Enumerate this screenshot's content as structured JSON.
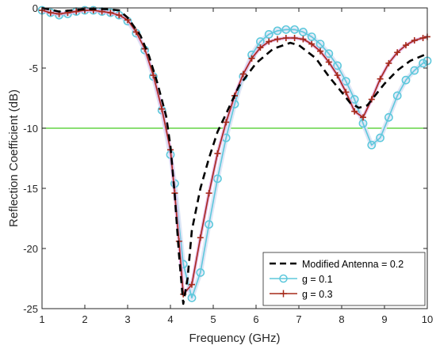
{
  "chart_data": {
    "type": "line",
    "title": "",
    "xlabel": "Frequency   (GHz)",
    "ylabel": "Reflection Coefficient   (dB)",
    "xlim": [
      1,
      10
    ],
    "ylim": [
      -25,
      0
    ],
    "xticks": [
      1,
      2,
      3,
      4,
      5,
      6,
      7,
      8,
      9,
      10
    ],
    "yticks": [
      0,
      -5,
      -10,
      -15,
      -20,
      -25
    ],
    "xtick_labels": [
      "1",
      "2",
      "3",
      "4",
      "5",
      "6",
      "7",
      "8",
      "9",
      "10"
    ],
    "ytick_labels": [
      "0",
      "-5",
      "-10",
      "-15",
      "-20",
      "-25"
    ],
    "grid": false,
    "legend_position": "bottom-right",
    "reference_line": {
      "y": -10,
      "color": "#44cc22"
    },
    "series": [
      {
        "name": "Modified Antenna = 0.2",
        "color": "#000000",
        "style": "dashed",
        "marker": "none",
        "x": [
          1.0,
          1.4,
          2.0,
          2.5,
          2.8,
          3.0,
          3.3,
          3.5,
          3.7,
          3.9,
          4.0,
          4.1,
          4.2,
          4.3,
          4.4,
          4.5,
          4.7,
          4.9,
          5.1,
          5.3,
          5.6,
          6.0,
          6.4,
          6.8,
          7.0,
          7.4,
          7.7,
          8.0,
          8.2,
          8.4,
          8.6,
          8.8,
          9.0,
          9.3,
          9.6,
          10.0
        ],
        "y": [
          0.0,
          -0.3,
          -0.1,
          -0.1,
          -0.2,
          -0.8,
          -2.3,
          -4.0,
          -6.3,
          -9.0,
          -11.5,
          -15.5,
          -20.5,
          -24.6,
          -22.5,
          -18.5,
          -15.0,
          -12.5,
          -10.3,
          -8.8,
          -6.5,
          -4.6,
          -3.4,
          -2.9,
          -3.1,
          -4.2,
          -5.7,
          -7.0,
          -7.9,
          -8.3,
          -8.1,
          -7.2,
          -6.3,
          -5.2,
          -4.4,
          -3.8
        ]
      },
      {
        "name": "g = 0.1",
        "color": "#5ec8dc",
        "style": "solid",
        "marker": "circle",
        "x": [
          1.0,
          1.2,
          1.4,
          1.6,
          1.8,
          2.0,
          2.2,
          2.4,
          2.6,
          2.8,
          3.0,
          3.2,
          3.4,
          3.6,
          3.8,
          4.0,
          4.1,
          4.3,
          4.5,
          4.7,
          4.9,
          5.1,
          5.3,
          5.5,
          5.7,
          5.9,
          6.1,
          6.3,
          6.5,
          6.7,
          6.9,
          7.1,
          7.3,
          7.5,
          7.7,
          7.9,
          8.1,
          8.3,
          8.5,
          8.7,
          8.9,
          9.1,
          9.3,
          9.5,
          9.7,
          9.9,
          10.0
        ],
        "y": [
          -0.2,
          -0.4,
          -0.6,
          -0.5,
          -0.3,
          -0.2,
          -0.2,
          -0.3,
          -0.4,
          -0.6,
          -1.1,
          -2.1,
          -3.5,
          -5.7,
          -8.5,
          -12.2,
          -14.6,
          -21.3,
          -24.1,
          -22.0,
          -18.0,
          -14.2,
          -10.8,
          -8.0,
          -5.7,
          -3.9,
          -2.8,
          -2.2,
          -1.9,
          -1.8,
          -1.8,
          -2.0,
          -2.4,
          -3.0,
          -3.8,
          -4.8,
          -6.1,
          -7.6,
          -9.6,
          -11.4,
          -10.8,
          -9.1,
          -7.3,
          -6.0,
          -5.2,
          -4.6,
          -4.4
        ]
      },
      {
        "name": "g = 0.3",
        "color": "#a52a1a",
        "style": "solid",
        "marker": "plus",
        "x": [
          1.0,
          1.2,
          1.4,
          1.6,
          1.8,
          2.0,
          2.2,
          2.4,
          2.6,
          2.8,
          3.0,
          3.2,
          3.4,
          3.6,
          3.8,
          4.0,
          4.1,
          4.2,
          4.3,
          4.5,
          4.7,
          4.9,
          5.1,
          5.3,
          5.5,
          5.7,
          5.9,
          6.1,
          6.3,
          6.5,
          6.7,
          6.9,
          7.1,
          7.3,
          7.5,
          7.7,
          7.9,
          8.1,
          8.3,
          8.5,
          8.7,
          8.9,
          9.1,
          9.3,
          9.5,
          9.7,
          9.9,
          10.0
        ],
        "y": [
          -0.2,
          -0.4,
          -0.5,
          -0.4,
          -0.3,
          -0.2,
          -0.2,
          -0.3,
          -0.4,
          -0.6,
          -1.0,
          -2.0,
          -3.4,
          -5.6,
          -8.4,
          -11.8,
          -15.4,
          -19.4,
          -23.8,
          -23.0,
          -19.1,
          -15.4,
          -12.1,
          -9.5,
          -7.3,
          -5.5,
          -4.2,
          -3.3,
          -2.8,
          -2.6,
          -2.5,
          -2.5,
          -2.6,
          -3.0,
          -3.6,
          -4.5,
          -5.6,
          -7.0,
          -8.6,
          -9.1,
          -7.6,
          -5.9,
          -4.6,
          -3.7,
          -3.1,
          -2.7,
          -2.5,
          -2.4
        ]
      }
    ]
  }
}
